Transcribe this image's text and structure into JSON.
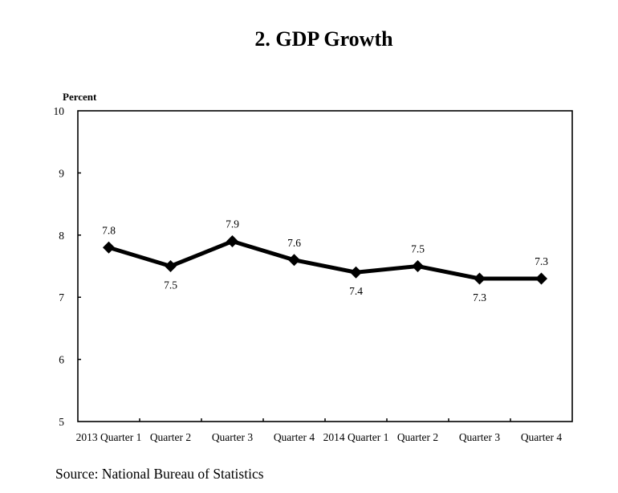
{
  "title": "2. GDP Growth",
  "source": "Source: National Bureau of Statistics",
  "chart_data": {
    "type": "line",
    "title": "2. GDP Growth",
    "xlabel": "",
    "ylabel": "Percent",
    "ylim": [
      5,
      10
    ],
    "yticks": [
      5,
      6,
      7,
      8,
      9,
      10
    ],
    "grid": false,
    "legend": "none",
    "categories": [
      "2013 Quarter 1",
      "Quarter 2",
      "Quarter 3",
      "Quarter 4",
      "2014 Quarter 1",
      "Quarter 2",
      "Quarter 3",
      "Quarter 4"
    ],
    "series": [
      {
        "name": "GDP Growth",
        "values": [
          7.8,
          7.5,
          7.9,
          7.6,
          7.4,
          7.5,
          7.3,
          7.3
        ],
        "label_positions": [
          "above",
          "below",
          "above",
          "above",
          "below",
          "above",
          "below",
          "above"
        ],
        "color": "#000000",
        "marker": "diamond"
      }
    ],
    "source": "Source: National Bureau of Statistics"
  }
}
